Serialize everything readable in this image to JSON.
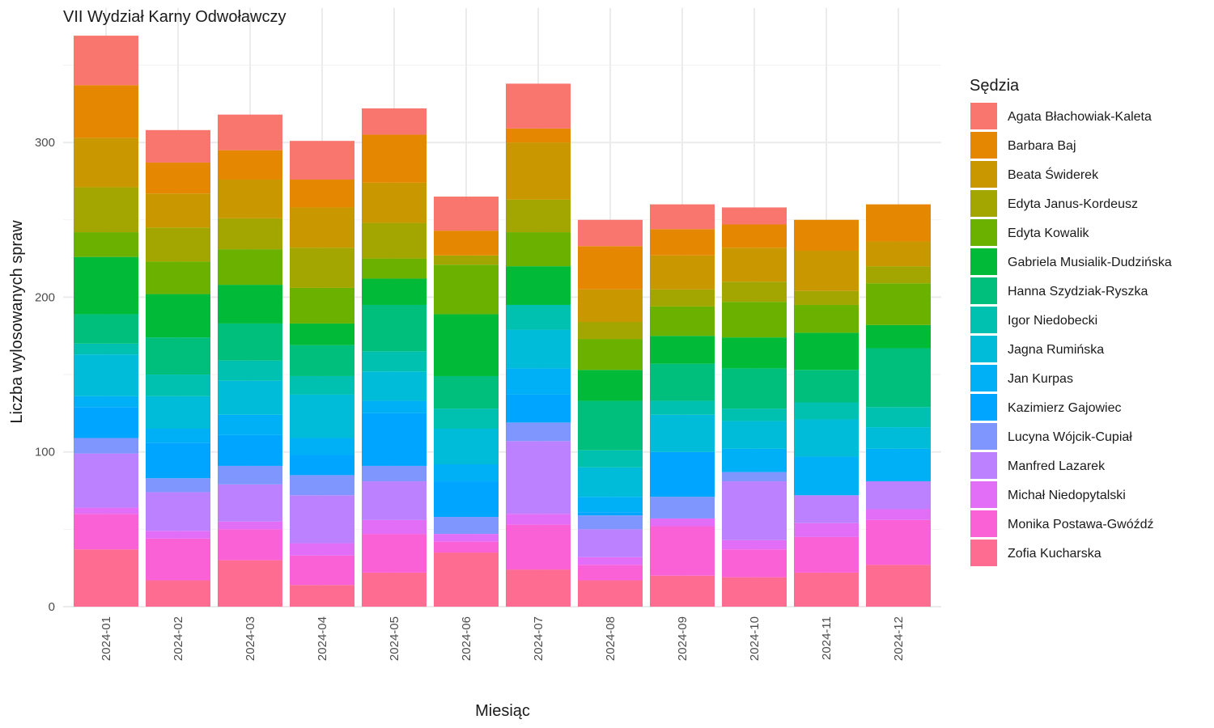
{
  "chart_data": {
    "type": "bar",
    "stacked": true,
    "title": "VII Wydział Karny Odwoławczy",
    "xlabel": "Miesiąc",
    "ylabel": "Liczba wylosowanych spraw",
    "ylim": [
      0,
      385
    ],
    "yticks": [
      0,
      100,
      200,
      300
    ],
    "grid": true,
    "legend_title": "Sędzia",
    "legend_position": "right",
    "categories": [
      "2024-01",
      "2024-02",
      "2024-03",
      "2024-04",
      "2024-05",
      "2024-06",
      "2024-07",
      "2024-08",
      "2024-09",
      "2024-10",
      "2024-11",
      "2024-12"
    ],
    "series": [
      {
        "name": "Agata Błachowiak-Kaleta",
        "color": "#F8766D",
        "values": [
          32,
          21,
          23,
          25,
          17,
          22,
          29,
          17,
          16,
          11,
          0,
          0
        ]
      },
      {
        "name": "Barbara Baj",
        "color": "#E58700",
        "values": [
          34,
          20,
          19,
          18,
          31,
          16,
          9,
          28,
          17,
          15,
          20,
          24
        ]
      },
      {
        "name": "Beata Świderek",
        "color": "#C99800",
        "values": [
          32,
          22,
          25,
          26,
          26,
          0,
          37,
          21,
          22,
          22,
          26,
          16
        ]
      },
      {
        "name": "Edyta Janus-Kordeusz",
        "color": "#A3A500",
        "values": [
          29,
          22,
          20,
          26,
          23,
          6,
          21,
          11,
          11,
          13,
          9,
          11
        ]
      },
      {
        "name": "Edyta Kowalik",
        "color": "#6BB100",
        "values": [
          16,
          21,
          23,
          23,
          13,
          32,
          22,
          20,
          19,
          23,
          18,
          27
        ]
      },
      {
        "name": "Gabriela Musialik-Dudzińska",
        "color": "#00BA38",
        "values": [
          37,
          28,
          25,
          14,
          17,
          40,
          25,
          20,
          18,
          20,
          24,
          15
        ]
      },
      {
        "name": "Hanna Szydziak-Ryszka",
        "color": "#00BF7D",
        "values": [
          19,
          24,
          24,
          20,
          30,
          21,
          0,
          32,
          24,
          26,
          21,
          38
        ]
      },
      {
        "name": "Igor Niedobecki",
        "color": "#00C0AF",
        "values": [
          7,
          14,
          13,
          12,
          13,
          13,
          16,
          11,
          9,
          8,
          11,
          13
        ]
      },
      {
        "name": "Jagna Rumińska",
        "color": "#00BCD8",
        "values": [
          27,
          21,
          22,
          28,
          19,
          23,
          25,
          19,
          24,
          18,
          24,
          14
        ]
      },
      {
        "name": "Jan Kurpas",
        "color": "#00B0F6",
        "values": [
          7,
          9,
          13,
          11,
          8,
          11,
          17,
          10,
          0,
          15,
          25,
          21
        ]
      },
      {
        "name": "Kazimierz Gajowiec",
        "color": "#00A5FF",
        "values": [
          20,
          23,
          20,
          13,
          34,
          23,
          18,
          2,
          29,
          0,
          0,
          0
        ]
      },
      {
        "name": "Lucyna Wójcik-Cupiał",
        "color": "#7F96FF",
        "values": [
          10,
          9,
          12,
          13,
          10,
          11,
          12,
          9,
          14,
          6,
          0,
          0
        ]
      },
      {
        "name": "Manfred Lazarek",
        "color": "#BC81FF",
        "values": [
          35,
          25,
          24,
          31,
          25,
          0,
          47,
          18,
          0,
          38,
          18,
          18
        ]
      },
      {
        "name": "Michał Niedopytalski",
        "color": "#E26EF7",
        "values": [
          4,
          5,
          5,
          8,
          9,
          5,
          7,
          5,
          5,
          6,
          9,
          7
        ]
      },
      {
        "name": "Monika Postawa-Gwóźdź",
        "color": "#FB61D7",
        "values": [
          23,
          27,
          20,
          19,
          25,
          7,
          29,
          10,
          32,
          18,
          23,
          29
        ]
      },
      {
        "name": "Zofia Kucharska",
        "color": "#FF6C91",
        "values": [
          37,
          17,
          30,
          14,
          22,
          35,
          24,
          17,
          20,
          19,
          22,
          27
        ]
      }
    ]
  }
}
